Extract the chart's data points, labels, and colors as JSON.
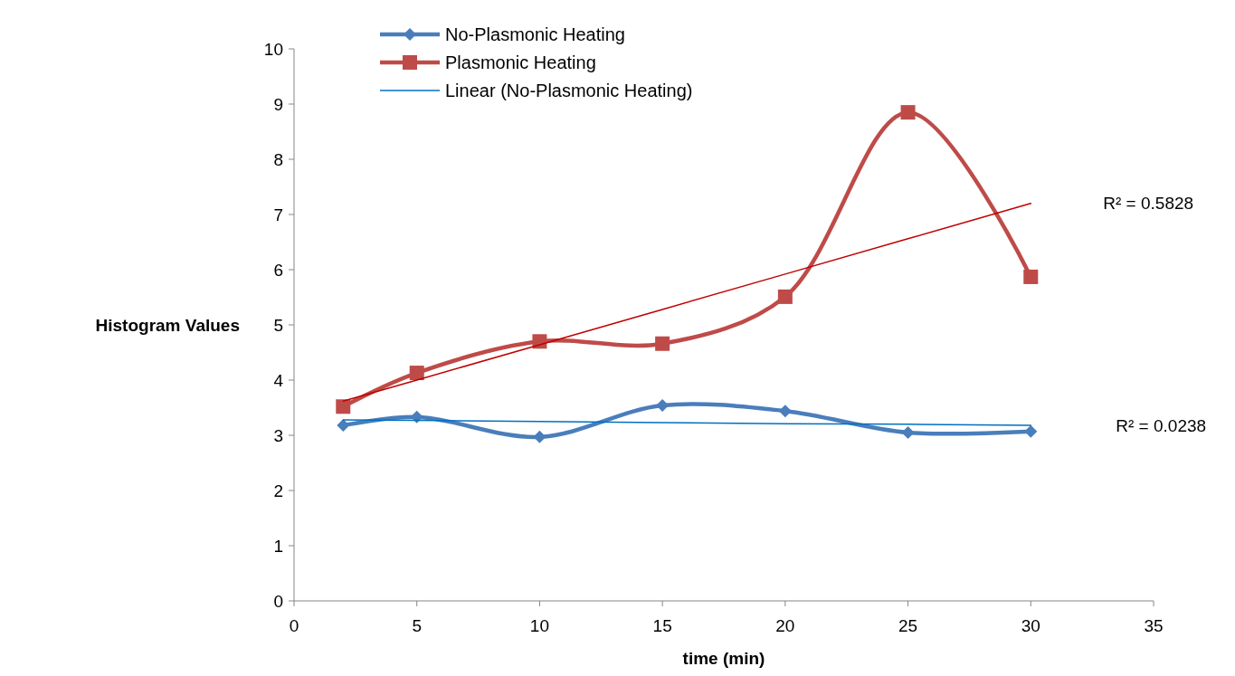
{
  "chart_data": {
    "type": "line",
    "xlabel": "time (min)",
    "ylabel": "Histogram Values",
    "x": [
      2,
      5,
      10,
      15,
      20,
      25,
      30
    ],
    "series": [
      {
        "name": "No-Plasmonic Heating",
        "color": "#4a7ebb",
        "marker": "diamond",
        "values": [
          3.18,
          3.33,
          2.97,
          3.54,
          3.44,
          3.05,
          3.07
        ]
      },
      {
        "name": "Plasmonic Heating",
        "color": "#be4b48",
        "marker": "square",
        "values": [
          3.52,
          4.13,
          4.7,
          4.66,
          5.51,
          8.85,
          5.87
        ]
      },
      {
        "name": "Linear (No-Plasmonic Heating)",
        "color": "#0070c0",
        "marker": "none",
        "values": [
          3.28,
          3.27,
          3.25,
          3.23,
          3.21,
          3.2,
          3.18
        ]
      },
      {
        "color": "#c00000",
        "marker": "none",
        "values": [
          3.62,
          4.0,
          4.64,
          5.28,
          5.92,
          6.56,
          7.2
        ]
      }
    ],
    "xlim": [
      0,
      35
    ],
    "xticks": [
      0,
      5,
      10,
      15,
      20,
      25,
      30,
      35
    ],
    "ylim": [
      0,
      10
    ],
    "yticks": [
      0,
      1,
      2,
      3,
      4,
      5,
      6,
      7,
      8,
      9,
      10
    ],
    "grid": false,
    "legend": "top",
    "annotations": [
      "R² = 0.5828",
      "R² = 0.0238"
    ]
  }
}
